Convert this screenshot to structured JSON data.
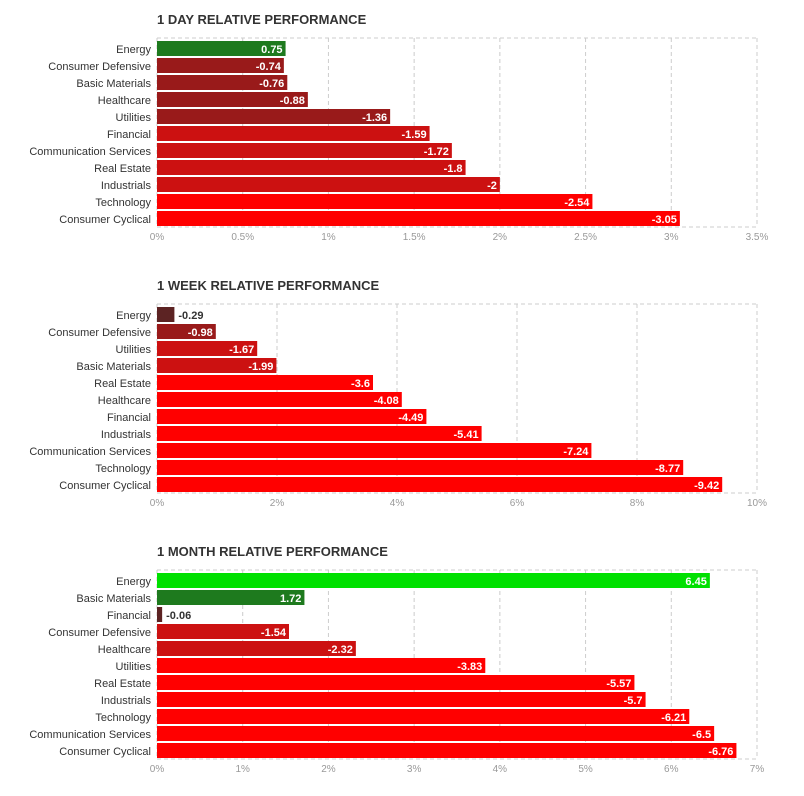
{
  "colors": {
    "strong_negative": "#ff0000",
    "mid_negative": "#cc1111",
    "weak_negative": "#991a1a",
    "faint_negative": "#5c2323",
    "weak_positive": "#1e7a1e",
    "strong_positive": "#00e000"
  },
  "chart_data": [
    {
      "type": "bar",
      "orientation": "horizontal",
      "title": "1 DAY RELATIVE PERFORMANCE",
      "categories": [
        "Energy",
        "Consumer Defensive",
        "Basic Materials",
        "Healthcare",
        "Utilities",
        "Financial",
        "Communication Services",
        "Real Estate",
        "Industrials",
        "Technology",
        "Consumer Cyclical"
      ],
      "values": [
        0.75,
        -0.74,
        -0.76,
        -0.88,
        -1.36,
        -1.59,
        -1.72,
        -1.8,
        -2,
        -2.54,
        -3.05
      ],
      "value_labels": [
        "0.75",
        "-0.74",
        "-0.76",
        "-0.88",
        "-1.36",
        "-1.59",
        "-1.72",
        "-1.8",
        "-2",
        "-2.54",
        "-3.05"
      ],
      "xlim": [
        0,
        3.5
      ],
      "ticks": [
        "0%",
        "0.5%",
        "1%",
        "1.5%",
        "2%",
        "2.5%",
        "3%",
        "3.5%"
      ],
      "grid": true,
      "legend": "none"
    },
    {
      "type": "bar",
      "orientation": "horizontal",
      "title": "1 WEEK RELATIVE PERFORMANCE",
      "categories": [
        "Energy",
        "Consumer Defensive",
        "Utilities",
        "Basic Materials",
        "Real Estate",
        "Healthcare",
        "Financial",
        "Industrials",
        "Communication Services",
        "Technology",
        "Consumer Cyclical"
      ],
      "values": [
        -0.29,
        -0.98,
        -1.67,
        -1.99,
        -3.6,
        -4.08,
        -4.49,
        -5.41,
        -7.24,
        -8.77,
        -9.42
      ],
      "value_labels": [
        "-0.29",
        "-0.98",
        "-1.67",
        "-1.99",
        "-3.6",
        "-4.08",
        "-4.49",
        "-5.41",
        "-7.24",
        "-8.77",
        "-9.42"
      ],
      "xlim": [
        0,
        10
      ],
      "ticks": [
        "0%",
        "2%",
        "4%",
        "6%",
        "8%",
        "10%"
      ],
      "grid": true,
      "legend": "none"
    },
    {
      "type": "bar",
      "orientation": "horizontal",
      "title": "1 MONTH RELATIVE PERFORMANCE",
      "categories": [
        "Energy",
        "Basic Materials",
        "Financial",
        "Consumer Defensive",
        "Healthcare",
        "Utilities",
        "Real Estate",
        "Industrials",
        "Technology",
        "Communication Services",
        "Consumer Cyclical"
      ],
      "values": [
        6.45,
        1.72,
        -0.06,
        -1.54,
        -2.32,
        -3.83,
        -5.57,
        -5.7,
        -6.21,
        -6.5,
        -6.76
      ],
      "value_labels": [
        "6.45",
        "1.72",
        "-0.06",
        "-1.54",
        "-2.32",
        "-3.83",
        "-5.57",
        "-5.7",
        "-6.21",
        "-6.5",
        "-6.76"
      ],
      "xlim": [
        0,
        7
      ],
      "ticks": [
        "0%",
        "1%",
        "2%",
        "3%",
        "4%",
        "5%",
        "6%",
        "7%"
      ],
      "grid": true,
      "legend": "none"
    }
  ]
}
